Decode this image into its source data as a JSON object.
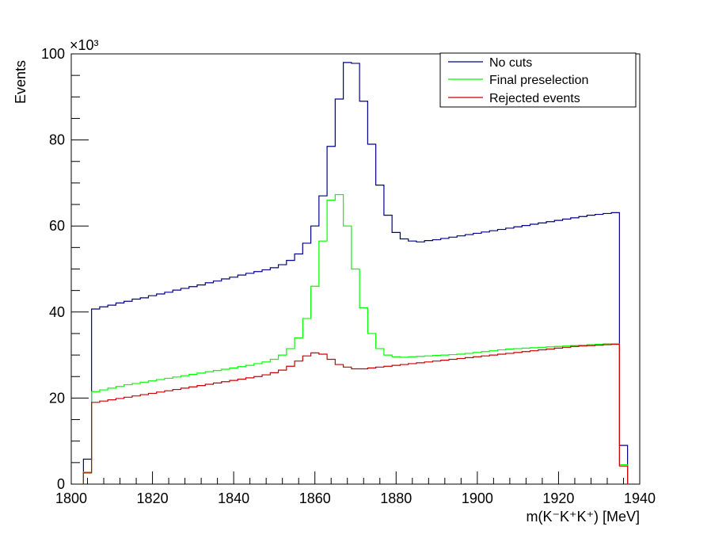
{
  "chart_data": {
    "type": "line",
    "step": true,
    "xlabel": "m(K⁻K⁺K⁺) [MeV]",
    "ylabel": "Events",
    "y_multiplier_label": "×10³",
    "xlim": [
      1800,
      1940
    ],
    "ylim": [
      0,
      100
    ],
    "x_ticks": [
      1800,
      1820,
      1840,
      1860,
      1880,
      1900,
      1920,
      1940
    ],
    "y_ticks": [
      0,
      20,
      40,
      60,
      80,
      100
    ],
    "bin_width": 2,
    "x_bin_low_edges": [
      1803,
      1805,
      1807,
      1809,
      1811,
      1813,
      1815,
      1817,
      1819,
      1821,
      1823,
      1825,
      1827,
      1829,
      1831,
      1833,
      1835,
      1837,
      1839,
      1841,
      1843,
      1845,
      1847,
      1849,
      1851,
      1853,
      1855,
      1857,
      1859,
      1861,
      1863,
      1865,
      1867,
      1869,
      1871,
      1873,
      1875,
      1877,
      1879,
      1881,
      1883,
      1885,
      1887,
      1889,
      1891,
      1893,
      1895,
      1897,
      1899,
      1901,
      1903,
      1905,
      1907,
      1909,
      1911,
      1913,
      1915,
      1917,
      1919,
      1921,
      1923,
      1925,
      1927,
      1929,
      1931,
      1933,
      1935
    ],
    "legend_position": "top-right",
    "series": [
      {
        "name": "No cuts",
        "color": "#00008b",
        "values": [
          5.8,
          40.7,
          41.2,
          41.6,
          42.1,
          42.5,
          43.0,
          43.3,
          43.8,
          44.2,
          44.6,
          45.1,
          45.5,
          45.9,
          46.3,
          46.8,
          47.2,
          47.7,
          48.1,
          48.6,
          49.0,
          49.4,
          49.8,
          50.3,
          51.0,
          52.0,
          53.5,
          56.0,
          60.0,
          67.0,
          78.5,
          89.5,
          98.0,
          97.8,
          89.0,
          79.0,
          69.5,
          62.5,
          58.5,
          57.0,
          56.5,
          56.3,
          56.6,
          56.8,
          57.1,
          57.4,
          57.7,
          58.0,
          58.3,
          58.6,
          58.9,
          59.2,
          59.5,
          59.8,
          60.1,
          60.4,
          60.7,
          61.0,
          61.3,
          61.6,
          61.9,
          62.2,
          62.5,
          62.7,
          62.9,
          63.1,
          9.0
        ]
      },
      {
        "name": "Final preselection",
        "color": "#00ff00",
        "values": [
          2.8,
          21.5,
          21.9,
          22.3,
          22.7,
          23.1,
          23.4,
          23.7,
          24.0,
          24.3,
          24.6,
          24.9,
          25.2,
          25.5,
          25.8,
          26.1,
          26.4,
          26.7,
          27.0,
          27.3,
          27.6,
          28.0,
          28.4,
          29.0,
          30.0,
          31.5,
          34.0,
          38.5,
          46.0,
          56.5,
          66.0,
          67.3,
          60.0,
          50.0,
          41.0,
          35.0,
          31.5,
          30.0,
          29.6,
          29.5,
          29.6,
          29.7,
          29.8,
          29.9,
          30.0,
          30.1,
          30.2,
          30.4,
          30.6,
          30.8,
          31.0,
          31.2,
          31.4,
          31.5,
          31.6,
          31.7,
          31.8,
          31.9,
          32.0,
          32.1,
          32.2,
          32.3,
          32.4,
          32.5,
          32.6,
          32.6,
          4.5
        ]
      },
      {
        "name": "Rejected events",
        "color": "#cc0000",
        "values": [
          2.6,
          19.0,
          19.3,
          19.6,
          19.9,
          20.2,
          20.5,
          20.8,
          21.1,
          21.4,
          21.7,
          22.0,
          22.3,
          22.6,
          22.9,
          23.2,
          23.5,
          23.8,
          24.1,
          24.4,
          24.7,
          25.0,
          25.4,
          25.9,
          26.5,
          27.4,
          28.6,
          29.8,
          30.5,
          30.2,
          29.0,
          27.8,
          27.2,
          26.8,
          26.8,
          27.0,
          27.2,
          27.4,
          27.6,
          27.8,
          28.0,
          28.2,
          28.4,
          28.6,
          28.8,
          29.0,
          29.2,
          29.4,
          29.6,
          29.8,
          30.0,
          30.2,
          30.4,
          30.6,
          30.8,
          31.0,
          31.2,
          31.4,
          31.6,
          31.8,
          32.0,
          32.1,
          32.2,
          32.3,
          32.4,
          32.5,
          4.2
        ]
      }
    ]
  }
}
